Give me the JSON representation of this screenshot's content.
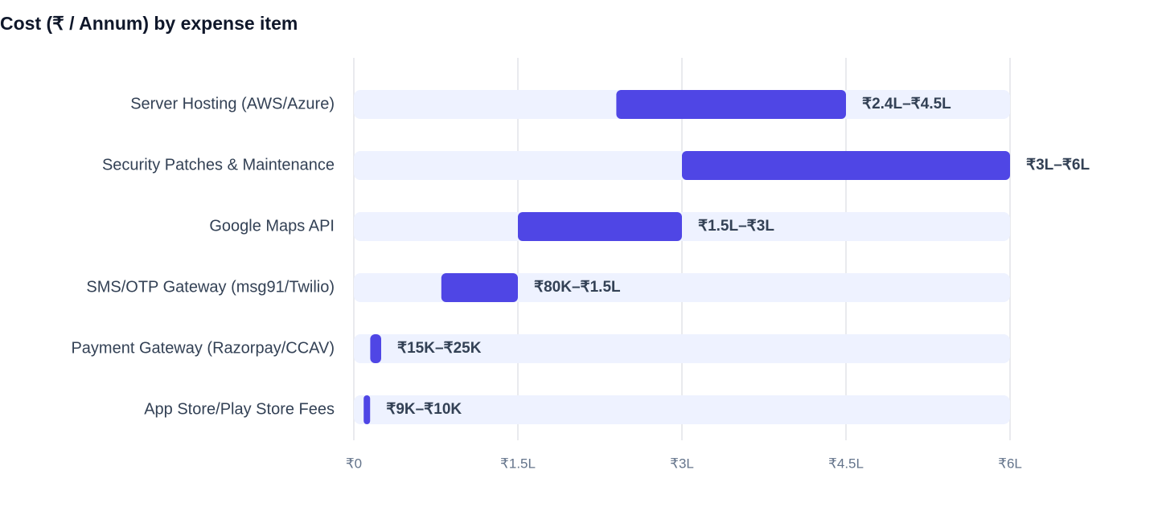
{
  "chart_data": {
    "type": "bar",
    "orientation": "horizontal",
    "title": "Cost (₹ / Annum) by expense item",
    "categories": [
      "Server Hosting (AWS/Azure)",
      "Security Patches & Maintenance",
      "Google Maps API",
      "SMS/OTP Gateway (msg91/Twilio)",
      "Payment Gateway (Razorpay/CCAV)",
      "App Store/Play Store Fees"
    ],
    "low": [
      240000,
      300000,
      150000,
      80000,
      15000,
      9000
    ],
    "high": [
      450000,
      600000,
      300000,
      150000,
      25000,
      10000
    ],
    "value_labels": [
      "₹2.4L–₹4.5L",
      "₹3L–₹6L",
      "₹1.5L–₹3L",
      "₹80K–₹1.5L",
      "₹15K–₹25K",
      "₹9K–₹10K"
    ],
    "color": "#4f46e5",
    "track_color": "#eef2ff",
    "xlim": [
      0,
      600000
    ],
    "xticks": [
      {
        "value": 0,
        "label": "₹0"
      },
      {
        "value": 150000,
        "label": "₹1.5L"
      },
      {
        "value": 300000,
        "label": "₹3L"
      },
      {
        "value": 450000,
        "label": "₹4.5L"
      },
      {
        "value": 600000,
        "label": "₹6L"
      }
    ],
    "grid": true
  }
}
